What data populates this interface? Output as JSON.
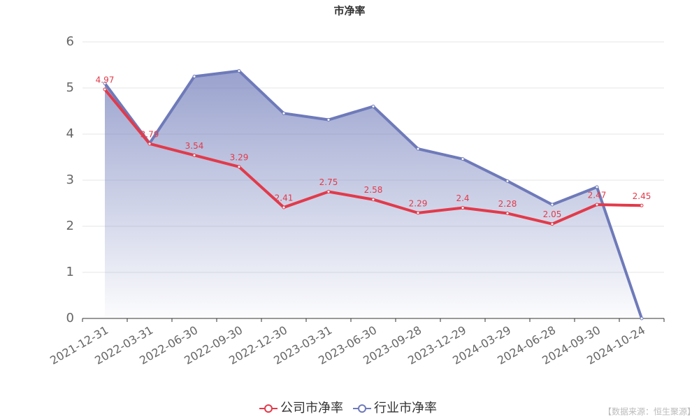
{
  "chart_data": {
    "type": "line",
    "title": "市净率",
    "categories": [
      "2021-12-31",
      "2022-03-31",
      "2022-06-30",
      "2022-09-30",
      "2022-12-30",
      "2023-03-31",
      "2023-06-30",
      "2023-09-28",
      "2023-12-29",
      "2024-03-29",
      "2024-06-28",
      "2024-09-30",
      "2024-10-24"
    ],
    "series": [
      {
        "name": "公司市净率",
        "color": "#e23a4a",
        "values": [
          4.97,
          3.79,
          3.54,
          3.29,
          2.41,
          2.75,
          2.58,
          2.29,
          2.4,
          2.28,
          2.05,
          2.47,
          2.45
        ],
        "labels": true
      },
      {
        "name": "行业市净率",
        "color": "#6e7ab9",
        "values": [
          5.1,
          3.8,
          5.25,
          5.37,
          4.45,
          4.31,
          4.6,
          3.68,
          3.46,
          2.98,
          2.47,
          2.85,
          0
        ],
        "area": true
      }
    ],
    "ylim": [
      0,
      6
    ],
    "yticks": [
      0,
      1,
      2,
      3,
      4,
      5,
      6
    ],
    "grid": true,
    "source": "【数据来源：恒生聚源】"
  }
}
